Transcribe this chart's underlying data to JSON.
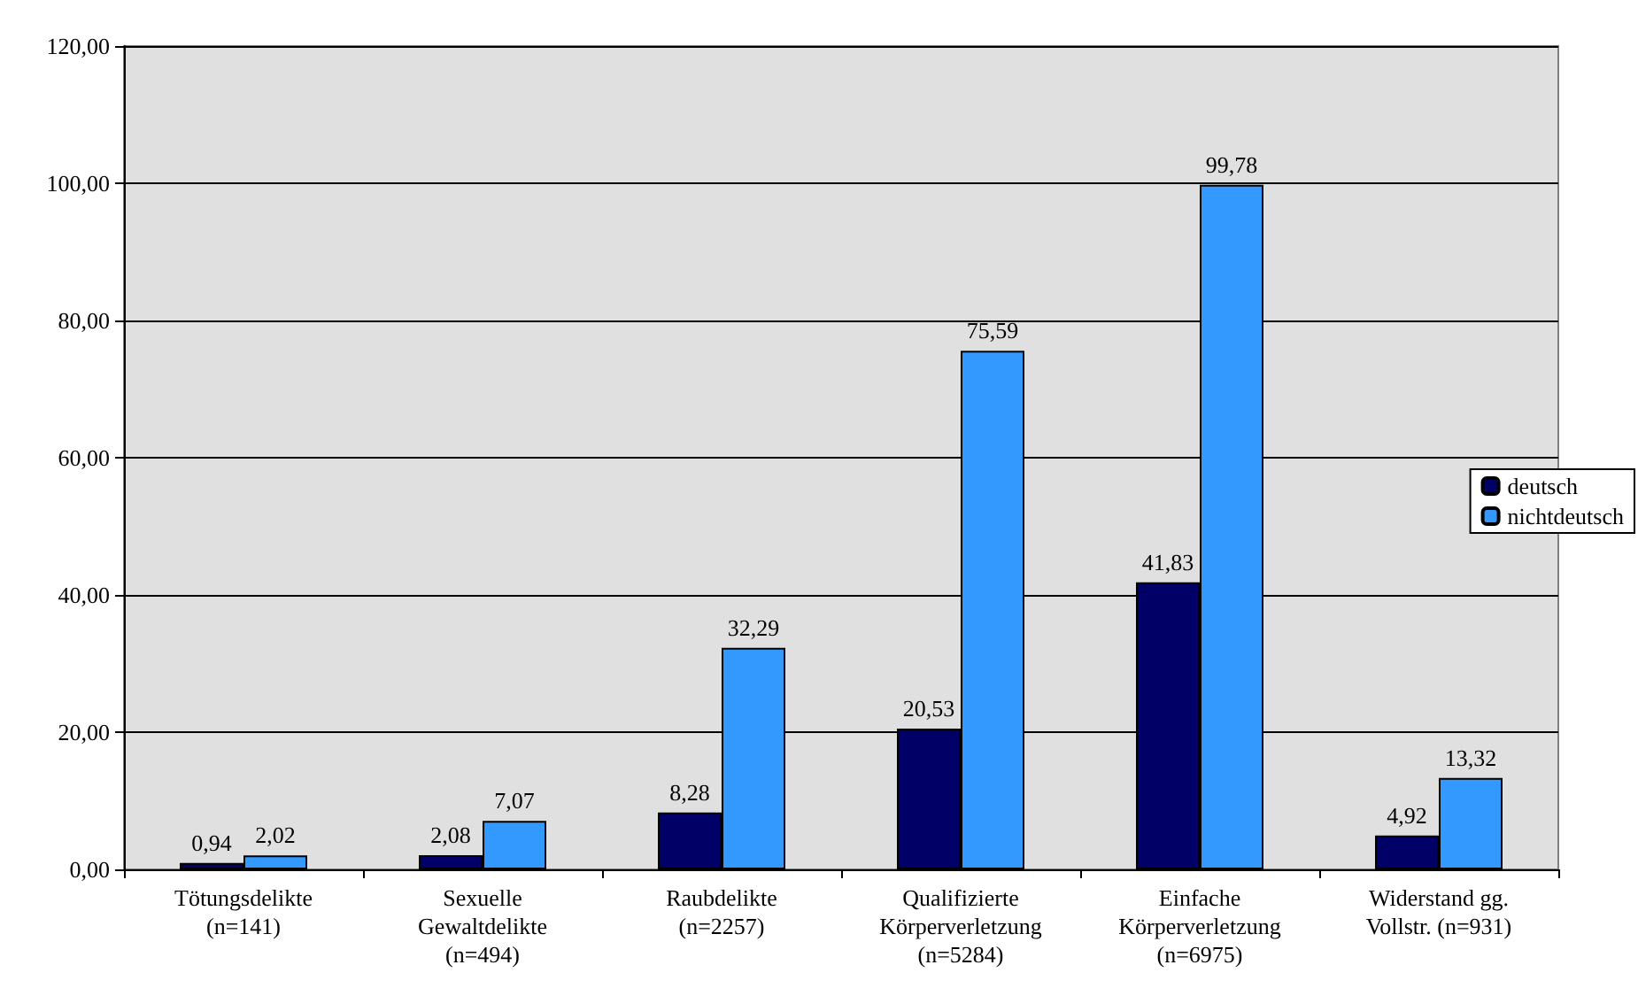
{
  "chart_data": {
    "type": "bar",
    "categories": [
      "Tötungsdelikte\n(n=141)",
      "Sexuelle\nGewaltdelikte\n(n=494)",
      "Raubdelikte\n(n=2257)",
      "Qualifizierte\nKörperverletzung\n(n=5284)",
      "Einfache\nKörperverletzung\n(n=6975)",
      "Widerstand gg.\nVollstr. (n=931)"
    ],
    "series": [
      {
        "name": "deutsch",
        "color": "#000066",
        "values": [
          0.94,
          2.08,
          8.28,
          20.53,
          41.83,
          4.92
        ],
        "value_labels": [
          "0,94",
          "2,08",
          "8,28",
          "20,53",
          "41,83",
          "4,92"
        ]
      },
      {
        "name": "nichtdeutsch",
        "color": "#3399ff",
        "values": [
          2.02,
          7.07,
          32.29,
          75.59,
          99.78,
          13.32
        ],
        "value_labels": [
          "2,02",
          "7,07",
          "32,29",
          "75,59",
          "99,78",
          "13,32"
        ]
      }
    ],
    "ylim": [
      0,
      120
    ],
    "yticks": [
      {
        "value": 0,
        "label": "0,00"
      },
      {
        "value": 20,
        "label": "20,00"
      },
      {
        "value": 40,
        "label": "40,00"
      },
      {
        "value": 60,
        "label": "60,00"
      },
      {
        "value": 80,
        "label": "80,00"
      },
      {
        "value": 100,
        "label": "100,00"
      },
      {
        "value": 120,
        "label": "120,00"
      }
    ],
    "grid": "y",
    "legend": "right"
  }
}
